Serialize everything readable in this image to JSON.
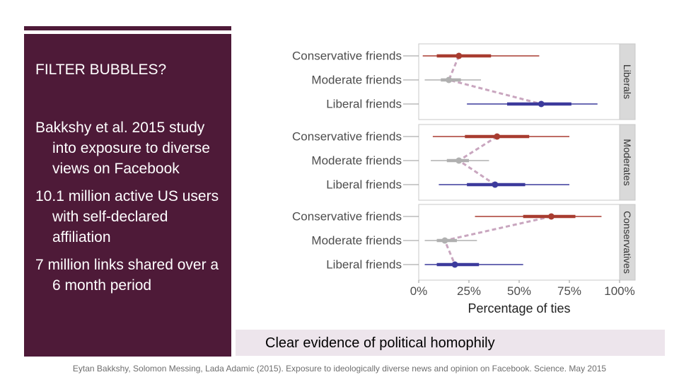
{
  "slide": {
    "title": "FILTER BUBBLES?",
    "bullets": [
      "Bakkshy et al. 2015 study into exposure to diverse views on Facebook",
      "10.1 million active US users with self-declared affiliation",
      "7 million links shared over a 6 month period"
    ],
    "caption": "Clear evidence of political homophily",
    "citation": "Eytan Bakkshy, Solomon Messing, Lada Adamic (2015). Exposure to ideologically diverse news and opinion on Facebook. Science. May 2015"
  },
  "colors": {
    "panel": "#4e1a38",
    "conservative": "#a83c30",
    "moderate": "#b0b0b0",
    "liberal": "#3c3a9c",
    "connector": "#c9a6bf",
    "facet_strip": "#d9d9d9",
    "caption_box": "#ede5ec"
  },
  "chart_data": {
    "type": "scatter",
    "xlabel": "Percentage of ties",
    "ylabel": "",
    "xlim": [
      0,
      100
    ],
    "x_ticks": [
      "0%",
      "25%",
      "50%",
      "75%",
      "100%"
    ],
    "categories": [
      "Conservative friends",
      "Moderate friends",
      "Liberal friends"
    ],
    "facets": [
      {
        "name": "Liberals",
        "points": [
          {
            "category": "Conservative friends",
            "value": 20,
            "inner": [
              9,
              36
            ],
            "outer": [
              2,
              60
            ]
          },
          {
            "category": "Moderate friends",
            "value": 15,
            "inner": [
              11,
              21
            ],
            "outer": [
              3,
              31
            ]
          },
          {
            "category": "Liberal friends",
            "value": 61,
            "inner": [
              44,
              76
            ],
            "outer": [
              24,
              89
            ]
          }
        ]
      },
      {
        "name": "Moderates",
        "points": [
          {
            "category": "Conservative friends",
            "value": 39,
            "inner": [
              23,
              55
            ],
            "outer": [
              7,
              75
            ]
          },
          {
            "category": "Moderate friends",
            "value": 20,
            "inner": [
              14,
              25
            ],
            "outer": [
              6,
              35
            ]
          },
          {
            "category": "Liberal friends",
            "value": 38,
            "inner": [
              24,
              53
            ],
            "outer": [
              10,
              75
            ]
          }
        ]
      },
      {
        "name": "Conservatives",
        "points": [
          {
            "category": "Conservative friends",
            "value": 66,
            "inner": [
              52,
              78
            ],
            "outer": [
              28,
              91
            ]
          },
          {
            "category": "Moderate friends",
            "value": 13,
            "inner": [
              9,
              19
            ],
            "outer": [
              3,
              29
            ]
          },
          {
            "category": "Liberal friends",
            "value": 18,
            "inner": [
              9,
              30
            ],
            "outer": [
              3,
              52
            ]
          }
        ]
      }
    ]
  }
}
